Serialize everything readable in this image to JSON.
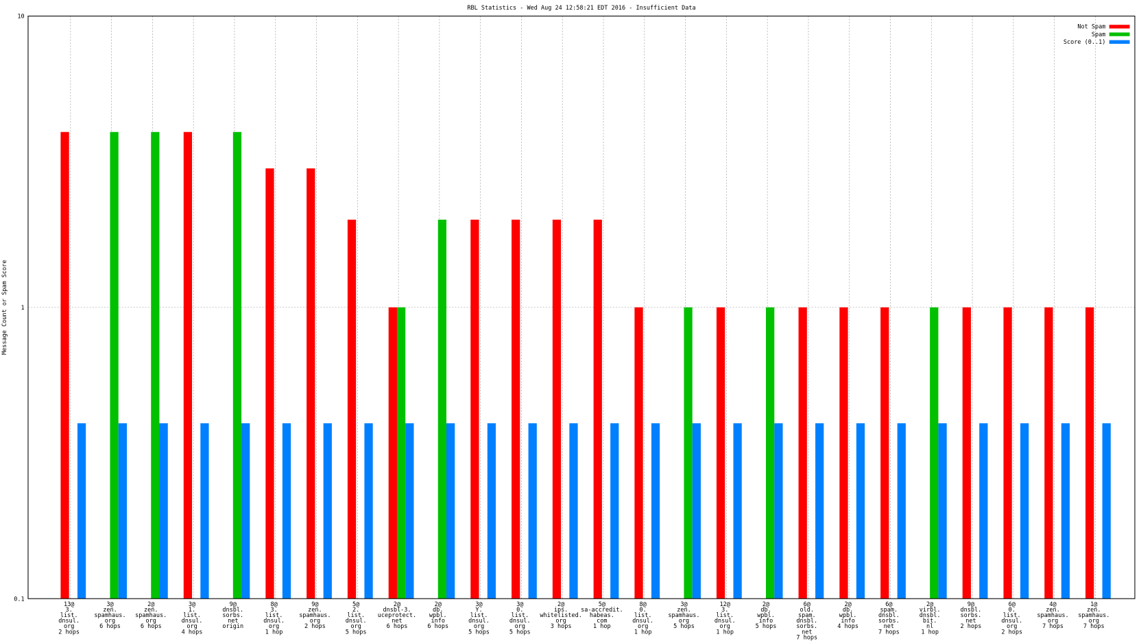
{
  "chart_data": {
    "type": "bar",
    "title": "RBL Statistics - Wed Aug 24 12:58:21 EDT 2016 - Insufficient Data",
    "ylabel": "Message Count or Spam Score",
    "yscale": "log",
    "ylim": [
      0.1,
      10
    ],
    "yticks": [
      0.1,
      1,
      10
    ],
    "grid": true,
    "legend": "upper right",
    "categories": [
      [
        "13@",
        "3.",
        "list.",
        "dnsul.",
        "org",
        "2 hops"
      ],
      [
        "3@",
        "zen.",
        "spamhaus.",
        "org",
        "6 hops"
      ],
      [
        "2@",
        "zen.",
        "spamhaus.",
        "org",
        "6 hops"
      ],
      [
        "3@",
        "1.",
        "list.",
        "dnsul.",
        "org",
        "4 hops"
      ],
      [
        "9@",
        "dnsbl.",
        "sorbs.",
        "net",
        "origin"
      ],
      [
        "8@",
        "3.",
        "list.",
        "dnsul.",
        "org",
        "1 hop"
      ],
      [
        "9@",
        "zen.",
        "spamhaus.",
        "org",
        "2 hops"
      ],
      [
        "5@",
        "2.",
        "list.",
        "dnsul.",
        "org",
        "5 hops"
      ],
      [
        "2@",
        "dnsbl-3.",
        "uceprotect.",
        "net",
        "6 hops"
      ],
      [
        "2@",
        "db.",
        "wpbl.",
        "info",
        "6 hops"
      ],
      [
        "3@",
        "Y.",
        "list.",
        "dnsul.",
        "org",
        "5 hops"
      ],
      [
        "3@",
        "0.",
        "list.",
        "dnsul.",
        "org",
        "5 hops"
      ],
      [
        "2@",
        "ips.",
        "whitelisted.",
        "org",
        "3 hops"
      ],
      [
        "5@",
        "sa-accredit.",
        "habeas.",
        "com",
        "1 hop"
      ],
      [
        "8@",
        "0.",
        "list.",
        "dnsul.",
        "org",
        "1 hop"
      ],
      [
        "3@",
        "zen.",
        "spamhaus.",
        "org",
        "5 hops"
      ],
      [
        "12@",
        "3.",
        "list.",
        "dnsul.",
        "org",
        "1 hop"
      ],
      [
        "2@",
        "db.",
        "wpbl.",
        "info",
        "5 hops"
      ],
      [
        "6@",
        "old.",
        "spam.",
        "dnsbl.",
        "sorbs.",
        "net",
        "7 hops"
      ],
      [
        "2@",
        "db.",
        "wpbl.",
        "info",
        "4 hops"
      ],
      [
        "6@",
        "spam.",
        "dnsbl.",
        "sorbs.",
        "net",
        "7 hops"
      ],
      [
        "2@",
        "virbl.",
        "dnsbl.",
        "bit.",
        "nl",
        "1 hop"
      ],
      [
        "9@",
        "dnsbl.",
        "sorbs.",
        "net",
        "2 hops"
      ],
      [
        "6@",
        "0.",
        "list.",
        "dnsul.",
        "org",
        "2 hops"
      ],
      [
        "4@",
        "zen.",
        "spamhaus.",
        "org",
        "7 hops"
      ],
      [
        "1@",
        "zen.",
        "spamhaus.",
        "org",
        "7 hops"
      ]
    ],
    "series": [
      {
        "name": "Not Spam",
        "color": "#ff0000",
        "values": [
          4,
          null,
          null,
          4,
          null,
          3,
          3,
          2,
          1,
          null,
          2,
          2,
          2,
          2,
          1,
          null,
          1,
          null,
          1,
          1,
          1,
          null,
          1,
          1,
          1,
          1
        ]
      },
      {
        "name": "Spam",
        "color": "#00c000",
        "values": [
          null,
          4,
          4,
          null,
          4,
          null,
          null,
          null,
          1,
          2,
          null,
          null,
          null,
          null,
          null,
          1,
          null,
          1,
          null,
          null,
          null,
          1,
          null,
          null,
          null,
          null
        ]
      },
      {
        "name": "Score (0..1)",
        "color": "#0080ff",
        "values": [
          0.4,
          0.4,
          0.4,
          0.4,
          0.4,
          0.4,
          0.4,
          0.4,
          0.4,
          0.4,
          0.4,
          0.4,
          0.4,
          0.4,
          0.4,
          0.4,
          0.4,
          0.4,
          0.4,
          0.4,
          0.4,
          0.4,
          0.4,
          0.4,
          0.4,
          0.4
        ]
      }
    ]
  }
}
